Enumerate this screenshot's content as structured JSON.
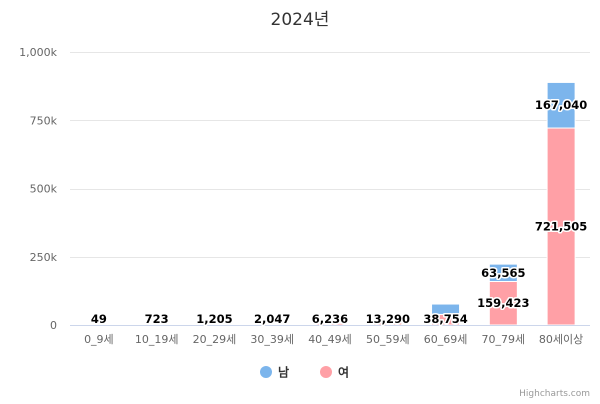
{
  "chart_data": {
    "type": "bar",
    "stacked": true,
    "title": "2024년",
    "xlabel": "",
    "ylabel": "",
    "categories": [
      "0_9세",
      "10_19세",
      "20_29세",
      "30_39세",
      "40_49세",
      "50_59세",
      "60_69세",
      "70_79세",
      "80세이상"
    ],
    "series": [
      {
        "name": "남",
        "color": "#7cb5ec",
        "values": [
          0,
          0,
          0,
          0,
          0,
          0,
          38000,
          63565,
          167040
        ],
        "labels": [
          "",
          "",
          "",
          "",
          "",
          "",
          "",
          "63,565",
          "167,040"
        ]
      },
      {
        "name": "여",
        "color": "#ffa0a6",
        "values": [
          49,
          723,
          1205,
          2047,
          6236,
          13290,
          38754,
          159423,
          721505
        ],
        "labels": [
          "49",
          "723",
          "1,205",
          "2,047",
          "6,236",
          "13,290",
          "38,754",
          "159,423",
          "721,505"
        ]
      }
    ],
    "ylim": [
      0,
      1000000
    ],
    "yticks": [
      0,
      250000,
      500000,
      750000,
      1000000
    ],
    "ytick_labels": [
      "0",
      "250k",
      "500k",
      "750k",
      "1,000k"
    ],
    "grid": true,
    "legend": "bottom-center"
  },
  "credits": "Highcharts.com"
}
